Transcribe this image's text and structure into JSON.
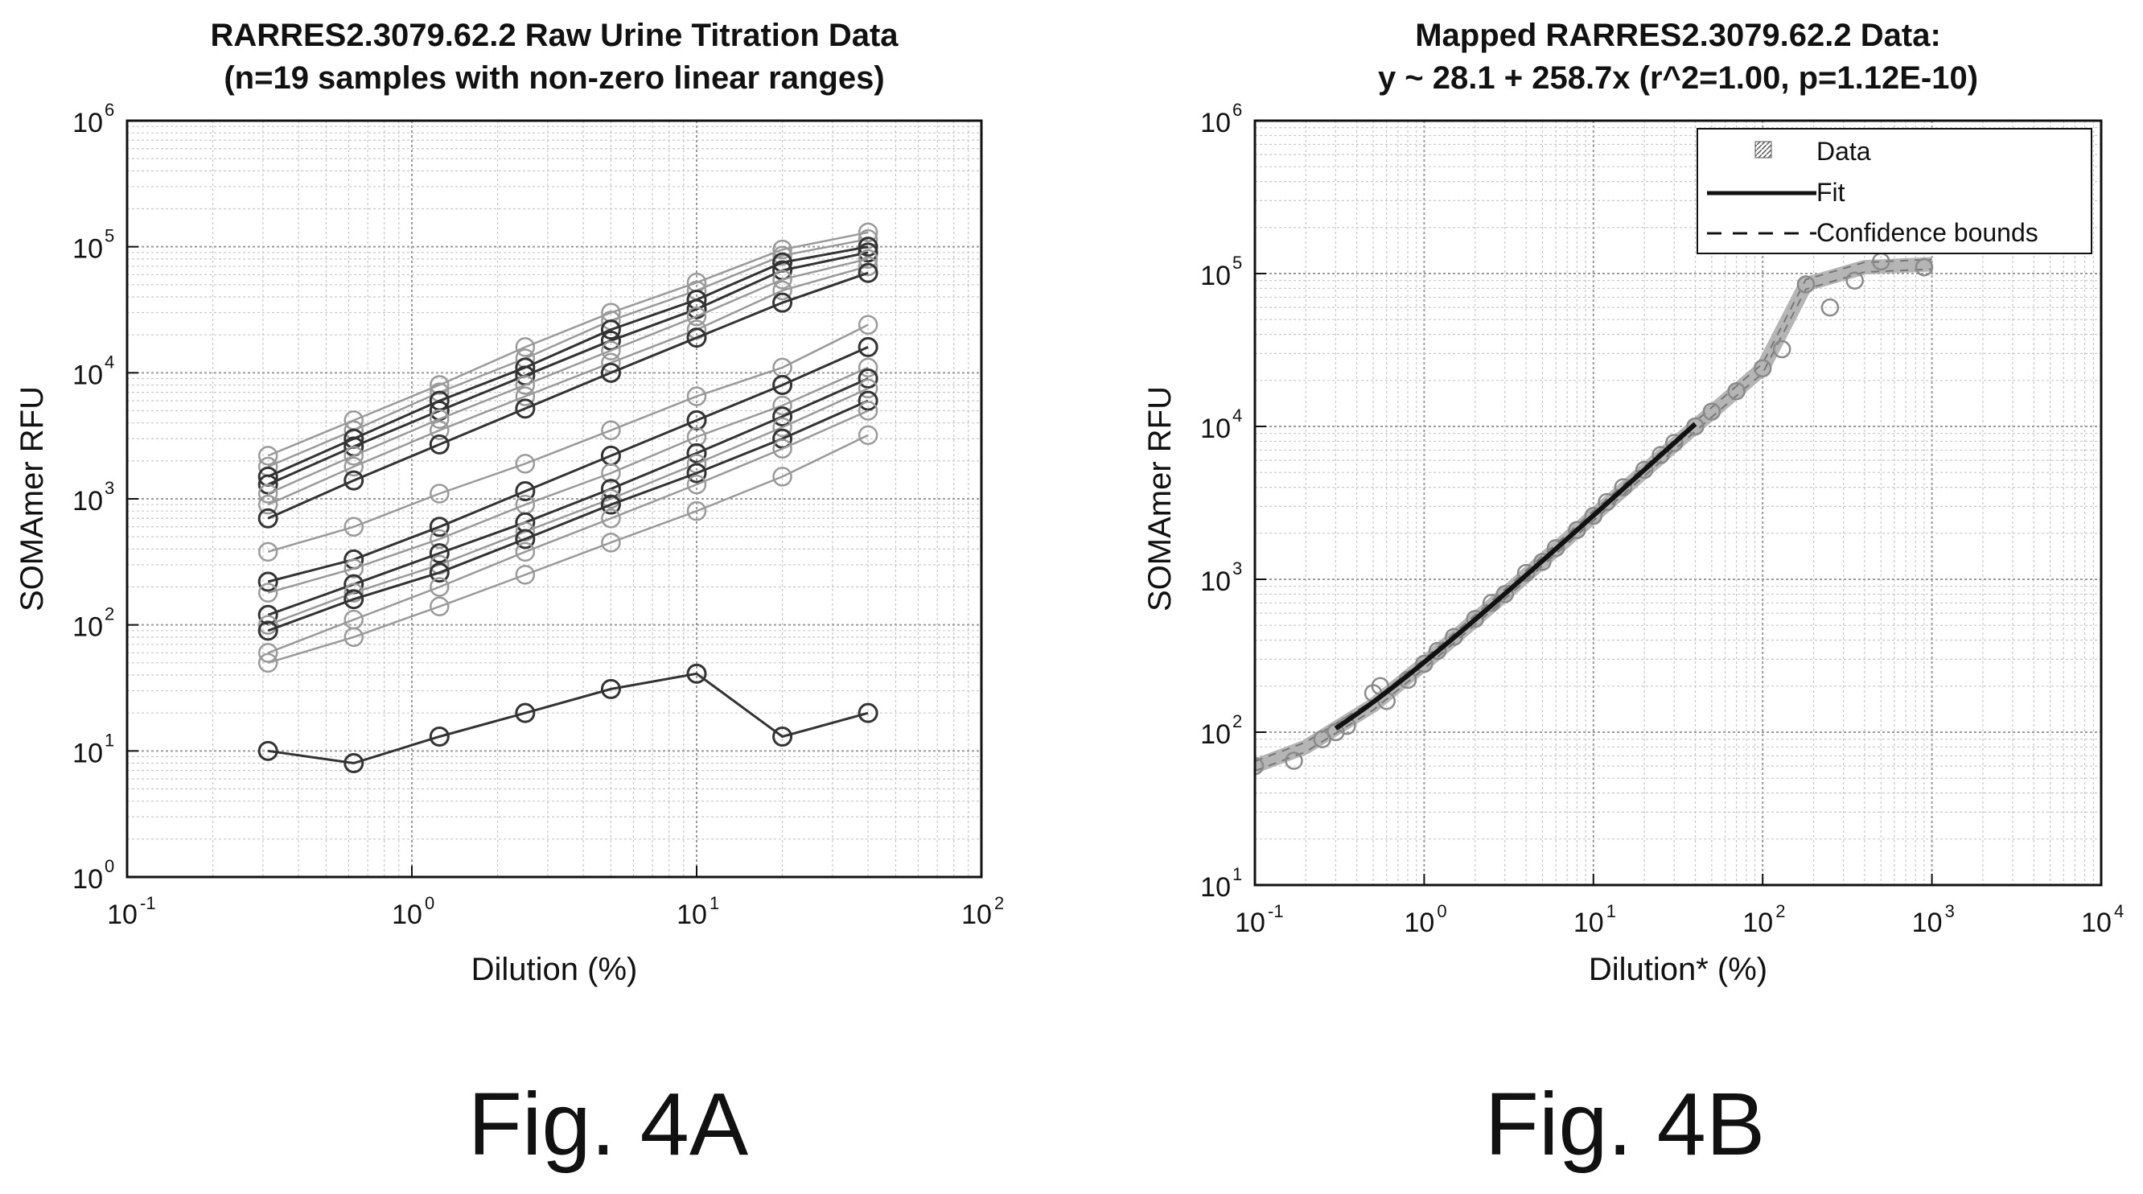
{
  "chart_data": [
    {
      "panel": "A",
      "type": "line",
      "caption": "Fig. 4A",
      "title": "RARRES2.3079.62.2 Raw Urine Titration Data",
      "subtitle": "(n=19 samples with non-zero linear ranges)",
      "xlabel": "Dilution (%)",
      "ylabel": "SOMAmer RFU",
      "xscale": "log",
      "yscale": "log",
      "xlim": [
        0.1,
        100
      ],
      "ylim": [
        1,
        1000000
      ],
      "xticks": [
        {
          "base": "10",
          "exp": "-1"
        },
        {
          "base": "10",
          "exp": "0"
        },
        {
          "base": "10",
          "exp": "1"
        },
        {
          "base": "10",
          "exp": "2"
        }
      ],
      "yticks": [
        {
          "base": "10",
          "exp": "0"
        },
        {
          "base": "10",
          "exp": "1"
        },
        {
          "base": "10",
          "exp": "2"
        },
        {
          "base": "10",
          "exp": "3"
        },
        {
          "base": "10",
          "exp": "4"
        },
        {
          "base": "10",
          "exp": "5"
        },
        {
          "base": "10",
          "exp": "6"
        }
      ],
      "grid": true,
      "x": [
        0.3125,
        0.625,
        1.25,
        2.5,
        5,
        10,
        20,
        40
      ],
      "series": [
        {
          "values": [
            2200,
            4200,
            8000,
            16000,
            30000,
            52000,
            95000,
            130000
          ],
          "style": "light"
        },
        {
          "values": [
            1800,
            3500,
            7000,
            13000,
            26000,
            45000,
            85000,
            115000
          ],
          "style": "light"
        },
        {
          "values": [
            1500,
            3000,
            6000,
            11000,
            22000,
            38000,
            75000,
            100000
          ],
          "style": "dark"
        },
        {
          "values": [
            1300,
            2600,
            5000,
            9500,
            18000,
            32000,
            65000,
            90000
          ],
          "style": "dark"
        },
        {
          "values": [
            1100,
            2200,
            4300,
            8000,
            15000,
            28000,
            55000,
            80000
          ],
          "style": "light"
        },
        {
          "values": [
            900,
            1800,
            3500,
            6500,
            12000,
            22000,
            45000,
            70000
          ],
          "style": "light"
        },
        {
          "values": [
            700,
            1400,
            2700,
            5200,
            10000,
            19000,
            36000,
            62000
          ],
          "style": "dark"
        },
        {
          "values": [
            380,
            600,
            1100,
            1900,
            3500,
            6500,
            11000,
            24000
          ],
          "style": "light"
        },
        {
          "values": [
            220,
            330,
            600,
            1150,
            2200,
            4200,
            8000,
            16000
          ],
          "style": "dark"
        },
        {
          "values": [
            180,
            280,
            480,
            900,
            1600,
            3100,
            5500,
            11000
          ],
          "style": "light"
        },
        {
          "values": [
            120,
            210,
            370,
            650,
            1200,
            2300,
            4500,
            9000
          ],
          "style": "dark"
        },
        {
          "values": [
            100,
            180,
            300,
            550,
            1000,
            1900,
            3700,
            7500
          ],
          "style": "light"
        },
        {
          "values": [
            90,
            160,
            260,
            480,
            900,
            1600,
            3000,
            6000
          ],
          "style": "dark"
        },
        {
          "values": [
            60,
            110,
            200,
            380,
            700,
            1300,
            2500,
            5000
          ],
          "style": "light"
        },
        {
          "values": [
            50,
            80,
            140,
            250,
            450,
            800,
            1500,
            3200
          ],
          "style": "light"
        },
        {
          "values": [
            10,
            8,
            13,
            20,
            31,
            41,
            13,
            20
          ],
          "style": "dark"
        }
      ]
    },
    {
      "panel": "B",
      "type": "scatter",
      "caption": "Fig. 4B",
      "title": "Mapped RARRES2.3079.62.2 Data:",
      "subtitle": "y ~ 28.1 + 258.7x (r^2=1.00, p=1.12E-10)",
      "xlabel": "Dilution* (%)",
      "ylabel": "SOMAmer RFU",
      "xscale": "log",
      "yscale": "log",
      "xlim": [
        0.1,
        10000
      ],
      "ylim": [
        10,
        1000000
      ],
      "xticks": [
        {
          "base": "10",
          "exp": "-1"
        },
        {
          "base": "10",
          "exp": "0"
        },
        {
          "base": "10",
          "exp": "1"
        },
        {
          "base": "10",
          "exp": "2"
        },
        {
          "base": "10",
          "exp": "3"
        },
        {
          "base": "10",
          "exp": "4"
        }
      ],
      "yticks": [
        {
          "base": "10",
          "exp": "1"
        },
        {
          "base": "10",
          "exp": "2"
        },
        {
          "base": "10",
          "exp": "3"
        },
        {
          "base": "10",
          "exp": "4"
        },
        {
          "base": "10",
          "exp": "5"
        },
        {
          "base": "10",
          "exp": "6"
        }
      ],
      "grid": true,
      "legend": {
        "position": "top-right",
        "entries": [
          "Data",
          "Fit",
          "Confidence bounds"
        ]
      },
      "fit": {
        "intercept": 28.1,
        "slope": 258.7,
        "x_range": [
          0.3,
          40
        ]
      },
      "data_points": [
        [
          0.1,
          60
        ],
        [
          0.17,
          65
        ],
        [
          0.25,
          90
        ],
        [
          0.3,
          100
        ],
        [
          0.35,
          110
        ],
        [
          0.5,
          180
        ],
        [
          0.55,
          200
        ],
        [
          0.6,
          160
        ],
        [
          0.8,
          220
        ],
        [
          1.0,
          280
        ],
        [
          1.2,
          340
        ],
        [
          1.5,
          420
        ],
        [
          2.0,
          550
        ],
        [
          2.5,
          700
        ],
        [
          3.0,
          800
        ],
        [
          4.0,
          1100
        ],
        [
          5.0,
          1300
        ],
        [
          6.0,
          1600
        ],
        [
          8.0,
          2100
        ],
        [
          10,
          2600
        ],
        [
          12,
          3200
        ],
        [
          15,
          4000
        ],
        [
          20,
          5200
        ],
        [
          25,
          6500
        ],
        [
          30,
          7800
        ],
        [
          40,
          10000
        ],
        [
          50,
          12500
        ],
        [
          70,
          17000
        ],
        [
          100,
          24000
        ],
        [
          130,
          32000
        ],
        [
          180,
          85000
        ],
        [
          250,
          60000
        ],
        [
          350,
          90000
        ],
        [
          500,
          120000
        ],
        [
          900,
          110000
        ]
      ],
      "confidence_band_points": [
        [
          0.1,
          60
        ],
        [
          0.2,
          80
        ],
        [
          0.5,
          150
        ],
        [
          1,
          280
        ],
        [
          3,
          800
        ],
        [
          10,
          2600
        ],
        [
          40,
          10000
        ],
        [
          100,
          24000
        ],
        [
          180,
          85000
        ],
        [
          400,
          110000
        ],
        [
          1000,
          115000
        ]
      ]
    }
  ]
}
